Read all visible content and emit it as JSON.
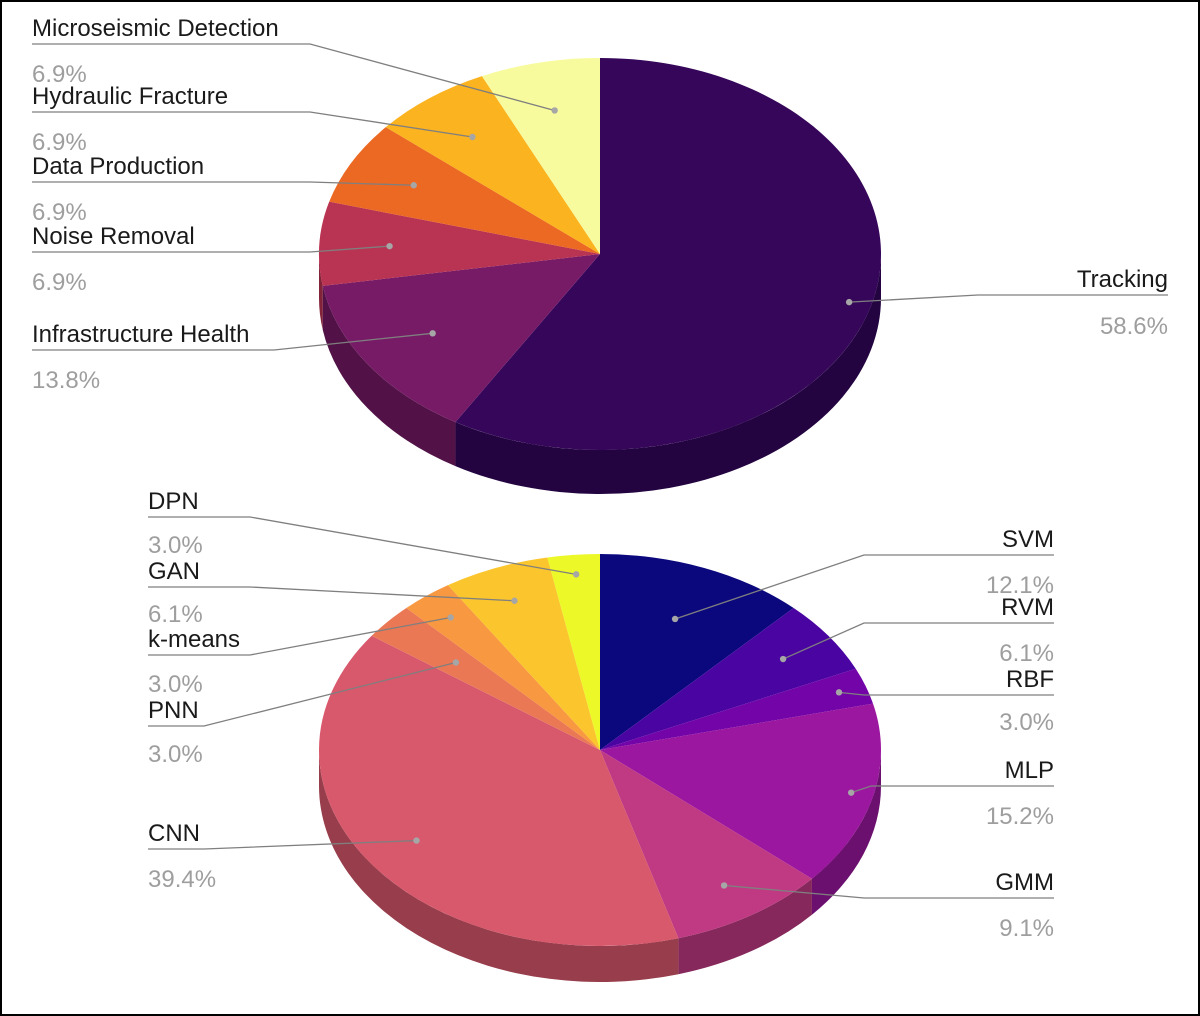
{
  "chart_data": [
    {
      "type": "pie",
      "style": "3d",
      "title": "",
      "slices": [
        {
          "label": "Tracking",
          "value": 58.6,
          "percent_label": "58.6%",
          "color": "#35065a",
          "side_color": "#230440"
        },
        {
          "label": "Infrastructure Health",
          "value": 13.8,
          "percent_label": "13.8%",
          "color": "#771b67",
          "side_color": "#521247"
        },
        {
          "label": "Noise Removal",
          "value": 6.9,
          "percent_label": "6.9%",
          "color": "#b93352",
          "side_color": "#82233a"
        },
        {
          "label": "Data Production",
          "value": 6.9,
          "percent_label": "6.9%",
          "color": "#ec6923",
          "side_color": "#a84a18"
        },
        {
          "label": "Hydraulic Fracture",
          "value": 6.9,
          "percent_label": "6.9%",
          "color": "#fbb31f",
          "side_color": "#b27f16"
        },
        {
          "label": "Microseismic Detection",
          "value": 6.9,
          "percent_label": "6.9%",
          "color": "#f7fb9e",
          "side_color": "#b0b370"
        }
      ]
    },
    {
      "type": "pie",
      "style": "3d",
      "title": "",
      "slices": [
        {
          "label": "SVM",
          "value": 12.1,
          "percent_label": "12.1%",
          "color": "#0b087e",
          "side_color": "#070559"
        },
        {
          "label": "RVM",
          "value": 6.1,
          "percent_label": "6.1%",
          "color": "#4a04a2",
          "side_color": "#340373"
        },
        {
          "label": "RBF",
          "value": 3.0,
          "percent_label": "3.0%",
          "color": "#7204a8",
          "side_color": "#510377"
        },
        {
          "label": "MLP",
          "value": 15.2,
          "percent_label": "15.2%",
          "color": "#9b179f",
          "side_color": "#6c1070"
        },
        {
          "label": "GMM",
          "value": 9.1,
          "percent_label": "9.1%",
          "color": "#c03a83",
          "side_color": "#86285c"
        },
        {
          "label": "CNN",
          "value": 39.4,
          "percent_label": "39.4%",
          "color": "#d8586c",
          "side_color": "#973d4b"
        },
        {
          "label": "PNN",
          "value": 3.0,
          "percent_label": "3.0%",
          "color": "#ea7855",
          "side_color": "#a3543b"
        },
        {
          "label": "k-means",
          "value": 3.0,
          "percent_label": "3.0%",
          "color": "#f89840",
          "side_color": "#ad6a2d"
        },
        {
          "label": "GAN",
          "value": 6.1,
          "percent_label": "6.1%",
          "color": "#fbc62d",
          "side_color": "#b08a20"
        },
        {
          "label": "DPN",
          "value": 3.0,
          "percent_label": "3.0%",
          "color": "#ecf827",
          "side_color": "#a5ad1b"
        }
      ]
    }
  ]
}
